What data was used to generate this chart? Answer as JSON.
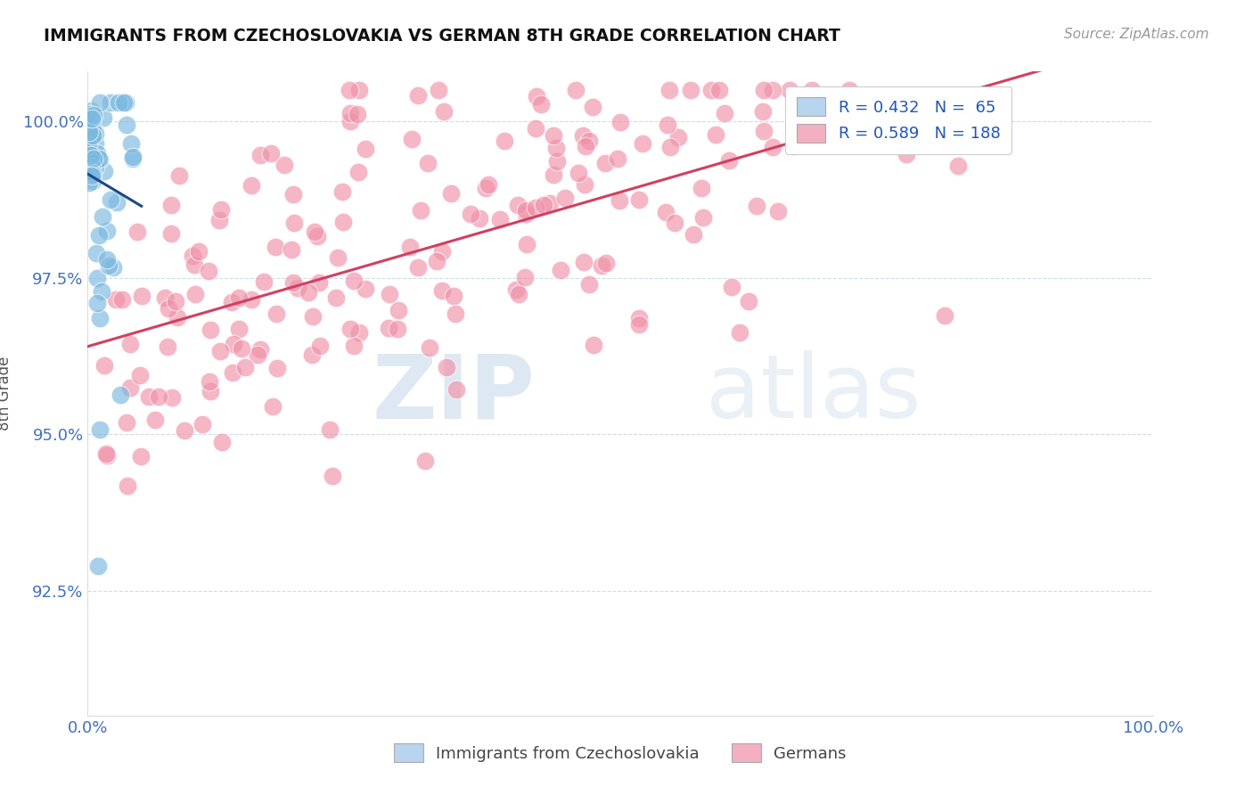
{
  "title": "IMMIGRANTS FROM CZECHOSLOVAKIA VS GERMAN 8TH GRADE CORRELATION CHART",
  "source_text": "Source: ZipAtlas.com",
  "ylabel": "8th Grade",
  "xmin": 0.0,
  "xmax": 1.0,
  "ymin": 0.905,
  "ymax": 1.008,
  "yticks": [
    0.925,
    0.95,
    0.975,
    1.0
  ],
  "ytick_labels": [
    "92.5%",
    "95.0%",
    "97.5%",
    "100.0%"
  ],
  "xticks": [
    0.0,
    0.2,
    0.4,
    0.6,
    0.8,
    1.0
  ],
  "xtick_labels": [
    "0.0%",
    "",
    "",
    "",
    "",
    "100.0%"
  ],
  "legend_entries": [
    {
      "label": "R = 0.432   N =  65",
      "color": "#b8d4ee"
    },
    {
      "label": "R = 0.589   N = 188",
      "color": "#f4b0c0"
    }
  ],
  "legend_labels_bottom": [
    "Immigrants from Czechoslovakia",
    "Germans"
  ],
  "legend_colors_bottom": [
    "#b8d4ee",
    "#f4b0c0"
  ],
  "blue_scatter_color": "#7ab8e0",
  "pink_scatter_color": "#f090a8",
  "blue_line_color": "#1a4a8a",
  "pink_line_color": "#d04060",
  "watermark_zip": "ZIP",
  "watermark_atlas": "atlas",
  "background_color": "#ffffff",
  "grid_color": "#ccdde8",
  "tick_color": "#4070c0",
  "axis_color": "#cccccc",
  "seed": 42,
  "n_blue": 65,
  "n_pink": 188
}
